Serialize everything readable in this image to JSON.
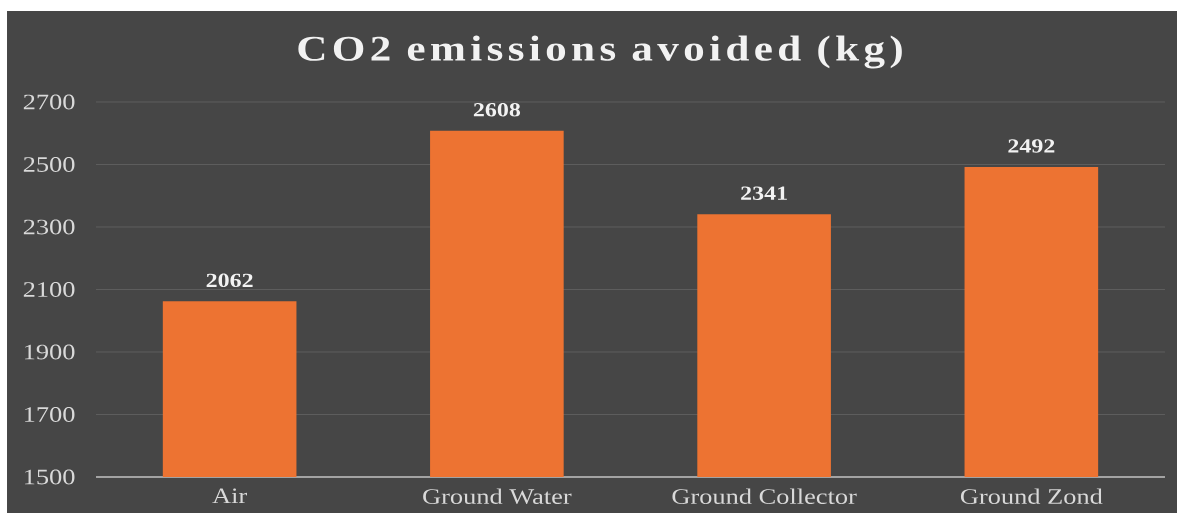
{
  "chart_data": {
    "type": "bar",
    "title": "CO2 emissions avoided (kg)",
    "categories": [
      "Air",
      "Ground Water",
      "Ground Collector",
      "Ground Zond"
    ],
    "values": [
      2062,
      2608,
      2341,
      2492
    ],
    "color": "#ed7332",
    "ylim": [
      1500,
      2700
    ],
    "yticks": [
      1500,
      1700,
      1900,
      2100,
      2300,
      2500,
      2700
    ],
    "grid": "y",
    "data_labels": true
  }
}
